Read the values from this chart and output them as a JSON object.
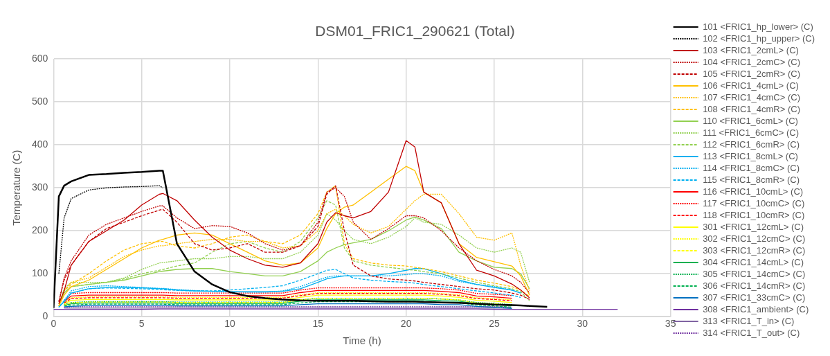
{
  "chart_data": {
    "type": "line",
    "title": "DSM01_FRIC1_290621 (Total)",
    "xlabel": "Time (h)",
    "ylabel": "Temperature (C)",
    "x": [
      0,
      0.3,
      0.6,
      1,
      2,
      3,
      4,
      5,
      6,
      6.2,
      7,
      8,
      9,
      10,
      11,
      12,
      13,
      14,
      15,
      15.5,
      16,
      16.5,
      17,
      18,
      19,
      20,
      20.5,
      21,
      22,
      23,
      24,
      25,
      26,
      26.5,
      27,
      28,
      29,
      30,
      31,
      32
    ],
    "xlim": [
      0,
      35
    ],
    "xticks": [
      0,
      5,
      10,
      15,
      20,
      25,
      30,
      35
    ],
    "ylim": [
      0,
      600
    ],
    "yticks": [
      0,
      100,
      200,
      300,
      400,
      500,
      600
    ],
    "grid": true,
    "legend": "right",
    "marker": "none",
    "series": [
      {
        "name": "101 <FRIC1_hp_lower> (C)",
        "color": "#000000",
        "line_style": "solid",
        "values": [
          20,
          280,
          305,
          315,
          330,
          332,
          335,
          337,
          340,
          340,
          170,
          105,
          75,
          57,
          48,
          43,
          40,
          38,
          37,
          37,
          37,
          37,
          37,
          36,
          35,
          35,
          35,
          34,
          33,
          32,
          30,
          28,
          27,
          26,
          25,
          23,
          null,
          null,
          null,
          null
        ]
      },
      {
        "name": "102 <FRIC1_hp_upper> (C)",
        "color": "#000000",
        "line_style": "dotted",
        "values": [
          null,
          100,
          230,
          275,
          295,
          300,
          302,
          303,
          305,
          300,
          null,
          null,
          null,
          null,
          null,
          null,
          null,
          null,
          null,
          null,
          null,
          null,
          null,
          null,
          null,
          null,
          null,
          null,
          null,
          null,
          null,
          null,
          null,
          null,
          null,
          null,
          null,
          null,
          null,
          null
        ]
      },
      {
        "name": "103 <FRIC1_2cmL> (C)",
        "color": "#c00000",
        "line_style": "solid",
        "values": [
          null,
          30,
          60,
          120,
          175,
          200,
          225,
          260,
          285,
          287,
          270,
          225,
          185,
          155,
          135,
          120,
          115,
          125,
          170,
          220,
          242,
          235,
          230,
          245,
          290,
          410,
          395,
          290,
          265,
          170,
          108,
          95,
          76,
          62,
          44,
          null,
          null,
          null,
          null,
          null
        ]
      },
      {
        "name": "104 <FRIC1_2cmC> (C)",
        "color": "#c00000",
        "line_style": "dotted",
        "values": [
          null,
          35,
          90,
          130,
          190,
          215,
          230,
          245,
          258,
          258,
          230,
          205,
          212,
          210,
          195,
          170,
          155,
          165,
          220,
          290,
          300,
          280,
          220,
          180,
          205,
          235,
          235,
          230,
          200,
          160,
          130,
          110,
          95,
          80,
          55,
          null,
          null,
          null,
          null,
          null
        ]
      },
      {
        "name": "105 <FRIC1_2cmR> (C)",
        "color": "#c00000",
        "line_style": "dashed",
        "values": [
          null,
          35,
          85,
          120,
          175,
          205,
          220,
          235,
          248,
          250,
          220,
          170,
          155,
          160,
          170,
          150,
          150,
          165,
          210,
          285,
          305,
          200,
          120,
          95,
          88,
          85,
          83,
          80,
          75,
          70,
          65,
          62,
          55,
          50,
          40,
          null,
          null,
          null,
          null,
          null
        ]
      },
      {
        "name": "106 <FRIC1_4cmL> (C)",
        "color": "#ffc000",
        "line_style": "solid",
        "values": [
          null,
          25,
          50,
          70,
          85,
          110,
          135,
          160,
          178,
          180,
          190,
          195,
          190,
          170,
          150,
          130,
          120,
          125,
          160,
          205,
          240,
          255,
          260,
          290,
          320,
          350,
          340,
          290,
          265,
          170,
          138,
          128,
          118,
          95,
          50,
          null,
          null,
          null,
          null,
          null
        ]
      },
      {
        "name": "107 <FRIC1_4cmC> (C)",
        "color": "#ffc000",
        "line_style": "dotted",
        "values": [
          null,
          25,
          60,
          80,
          90,
          115,
          140,
          155,
          165,
          165,
          170,
          175,
          180,
          180,
          175,
          175,
          160,
          165,
          200,
          240,
          250,
          235,
          215,
          195,
          210,
          250,
          270,
          285,
          285,
          240,
          185,
          178,
          195,
          120,
          60,
          null,
          null,
          null,
          null,
          null
        ]
      },
      {
        "name": "108 <FRIC1_4cmR> (C)",
        "color": "#ffc000",
        "line_style": "dashed",
        "values": [
          null,
          30,
          60,
          75,
          100,
          130,
          155,
          170,
          175,
          175,
          165,
          160,
          170,
          185,
          190,
          175,
          170,
          190,
          240,
          290,
          305,
          170,
          135,
          125,
          120,
          118,
          115,
          112,
          105,
          95,
          85,
          78,
          70,
          62,
          47,
          null,
          null,
          null,
          null,
          null
        ]
      },
      {
        "name": "110 <FRIC1_6cmL> (C)",
        "color": "#92d050",
        "line_style": "solid",
        "values": [
          null,
          25,
          55,
          70,
          75,
          80,
          85,
          95,
          105,
          106,
          110,
          112,
          112,
          105,
          100,
          95,
          95,
          105,
          130,
          150,
          160,
          168,
          172,
          180,
          200,
          225,
          232,
          225,
          205,
          150,
          130,
          115,
          112,
          100,
          65,
          null,
          null,
          null,
          null,
          null
        ]
      },
      {
        "name": "111 <FRIC1_6cmC> (C)",
        "color": "#92d050",
        "line_style": "dotted",
        "values": [
          null,
          30,
          65,
          80,
          80,
          80,
          90,
          110,
          125,
          126,
          130,
          135,
          135,
          140,
          140,
          135,
          135,
          150,
          190,
          240,
          225,
          200,
          180,
          170,
          185,
          210,
          230,
          220,
          215,
          190,
          160,
          150,
          160,
          150,
          80,
          null,
          null,
          null,
          null,
          null
        ]
      },
      {
        "name": "112 <FRIC1_6cmR> (C)",
        "color": "#92d050",
        "line_style": "dashed",
        "values": [
          null,
          25,
          55,
          70,
          75,
          80,
          88,
          100,
          108,
          110,
          118,
          125,
          150,
          170,
          175,
          160,
          150,
          175,
          230,
          270,
          260,
          160,
          130,
          120,
          115,
          110,
          108,
          105,
          100,
          90,
          80,
          72,
          65,
          58,
          37,
          null,
          null,
          null,
          null,
          null
        ]
      },
      {
        "name": "113 <FRIC1_8cmL> (C)",
        "color": "#00b0f0",
        "line_style": "solid",
        "values": [
          null,
          22,
          35,
          55,
          65,
          68,
          68,
          67,
          65,
          65,
          62,
          60,
          59,
          58,
          58,
          58,
          59,
          65,
          80,
          88,
          92,
          95,
          95,
          95,
          100,
          108,
          112,
          112,
          100,
          85,
          75,
          68,
          62,
          55,
          null,
          null,
          null,
          null,
          null,
          null
        ]
      },
      {
        "name": "114 <FRIC1_8cmC> (C)",
        "color": "#00b0f0",
        "line_style": "dotted",
        "values": [
          null,
          22,
          38,
          60,
          70,
          72,
          70,
          68,
          66,
          66,
          63,
          61,
          59,
          58,
          57,
          57,
          60,
          70,
          85,
          92,
          95,
          95,
          95,
          95,
          95,
          98,
          100,
          100,
          95,
          82,
          75,
          70,
          62,
          55,
          null,
          null,
          null,
          null,
          null,
          null
        ]
      },
      {
        "name": "115 <FRIC1_8cmR> (C)",
        "color": "#00b0f0",
        "line_style": "dashed",
        "values": [
          null,
          22,
          35,
          55,
          65,
          67,
          66,
          65,
          63,
          63,
          61,
          60,
          60,
          62,
          65,
          68,
          72,
          85,
          100,
          108,
          110,
          100,
          90,
          85,
          82,
          80,
          78,
          75,
          70,
          65,
          60,
          55,
          50,
          45,
          null,
          null,
          null,
          null,
          null,
          null
        ]
      },
      {
        "name": "116 <FRIC1_10cmL> (C)",
        "color": "#ff0000",
        "line_style": "solid",
        "values": [
          null,
          null,
          35,
          48,
          50,
          50,
          50,
          50,
          50,
          50,
          49,
          49,
          49,
          49,
          49,
          49,
          49,
          56,
          61,
          61,
          61,
          61,
          61,
          61,
          61,
          61,
          61,
          61,
          59,
          56,
          48,
          46,
          43,
          null,
          null,
          null,
          null,
          null,
          null,
          null
        ]
      },
      {
        "name": "117 <FRIC1_10cmC> (C)",
        "color": "#ff0000",
        "line_style": "dotted",
        "values": [
          null,
          null,
          38,
          54,
          56,
          56,
          56,
          56,
          56,
          56,
          55,
          55,
          55,
          55,
          55,
          55,
          55,
          62,
          67,
          67,
          67,
          67,
          67,
          67,
          67,
          67,
          67,
          67,
          65,
          62,
          54,
          52,
          49,
          null,
          null,
          null,
          null,
          null,
          null,
          null
        ]
      },
      {
        "name": "118 <FRIC1_10cmR> (C)",
        "color": "#ff0000",
        "line_style": "dashed",
        "values": [
          null,
          null,
          32,
          42,
          44,
          44,
          44,
          44,
          44,
          44,
          43,
          43,
          43,
          43,
          43,
          43,
          43,
          49,
          54,
          54,
          54,
          54,
          54,
          54,
          54,
          54,
          54,
          54,
          52,
          49,
          42,
          40,
          37,
          null,
          null,
          null,
          null,
          null,
          null,
          null
        ]
      },
      {
        "name": "301 <FRIC1_12cmL> (C)",
        "color": "#ffff00",
        "line_style": "solid",
        "values": [
          null,
          null,
          30,
          38,
          40,
          40,
          40,
          40,
          40,
          40,
          39,
          39,
          39,
          39,
          39,
          39,
          39,
          45,
          50,
          50,
          50,
          50,
          50,
          50,
          50,
          50,
          50,
          50,
          48,
          45,
          38,
          36,
          33,
          null,
          null,
          null,
          null,
          null,
          null,
          null
        ]
      },
      {
        "name": "302 <FRIC1_12cmC> (C)",
        "color": "#ffff00",
        "line_style": "dotted",
        "values": [
          null,
          null,
          33,
          44,
          46,
          46,
          46,
          46,
          46,
          46,
          45,
          45,
          45,
          45,
          45,
          45,
          45,
          51,
          56,
          56,
          56,
          56,
          56,
          56,
          56,
          56,
          56,
          56,
          54,
          51,
          44,
          42,
          39,
          null,
          null,
          null,
          null,
          null,
          null,
          null
        ]
      },
      {
        "name": "303 <FRIC1_12cmR> (C)",
        "color": "#ffff00",
        "line_style": "dashed",
        "values": [
          null,
          null,
          27,
          32,
          34,
          34,
          34,
          34,
          34,
          34,
          33,
          33,
          33,
          33,
          33,
          33,
          33,
          39,
          43,
          43,
          43,
          43,
          43,
          43,
          43,
          43,
          43,
          43,
          41,
          39,
          32,
          30,
          27,
          null,
          null,
          null,
          null,
          null,
          null,
          null
        ]
      },
      {
        "name": "304 <FRIC1_14cmL> (C)",
        "color": "#00b050",
        "line_style": "solid",
        "values": [
          null,
          null,
          26,
          30,
          32,
          32,
          32,
          32,
          32,
          32,
          31,
          31,
          31,
          31,
          31,
          31,
          31,
          36,
          39,
          39,
          39,
          39,
          39,
          39,
          39,
          39,
          39,
          39,
          37,
          36,
          30,
          28,
          25,
          null,
          null,
          null,
          null,
          null,
          null,
          null
        ]
      },
      {
        "name": "305 <FRIC1_14cmC> (C)",
        "color": "#00b050",
        "line_style": "dotted",
        "values": [
          null,
          null,
          28,
          33,
          35,
          35,
          35,
          35,
          35,
          35,
          34,
          34,
          34,
          34,
          34,
          34,
          34,
          39,
          43,
          43,
          43,
          43,
          43,
          43,
          43,
          43,
          43,
          43,
          41,
          39,
          33,
          31,
          28,
          null,
          null,
          null,
          null,
          null,
          null,
          null
        ]
      },
      {
        "name": "306 <FRIC1_14cmR> (C)",
        "color": "#00b050",
        "line_style": "dashed",
        "values": [
          null,
          null,
          25,
          27,
          29,
          29,
          29,
          29,
          29,
          29,
          28,
          28,
          28,
          28,
          28,
          28,
          28,
          32,
          35,
          35,
          35,
          35,
          35,
          35,
          35,
          35,
          35,
          35,
          33,
          32,
          27,
          25,
          22,
          null,
          null,
          null,
          null,
          null,
          null,
          null
        ]
      },
      {
        "name": "307 <FRIC1_33cmC> (C)",
        "color": "#0070c0",
        "line_style": "solid",
        "values": [
          null,
          null,
          23,
          24,
          26,
          26,
          26,
          26,
          26,
          26,
          25,
          25,
          25,
          25,
          25,
          25,
          25,
          28,
          30,
          30,
          30,
          30,
          30,
          30,
          30,
          30,
          30,
          30,
          28,
          28,
          24,
          22,
          19,
          null,
          null,
          null,
          null,
          null,
          null,
          null
        ]
      },
      {
        "name": "308 <FRIC1_ambient> (C)",
        "color": "#7030a0",
        "line_style": "solid",
        "values": [
          17,
          17,
          17,
          17,
          17,
          17,
          17,
          17,
          18,
          18,
          18,
          18,
          18,
          18,
          18,
          18,
          18,
          18,
          18,
          18,
          18,
          18,
          18,
          18,
          18,
          18,
          18,
          18,
          18,
          18,
          18,
          17,
          17,
          17,
          17,
          17,
          17,
          17,
          17,
          17
        ]
      },
      {
        "name": "313 <FRIC1_T_in> (C)",
        "color": "#8064a2",
        "line_style": "solid",
        "values": [
          null,
          null,
          20,
          20,
          20,
          20,
          20,
          20,
          20,
          20,
          20,
          20,
          20,
          20,
          20,
          20,
          20,
          20,
          20,
          20,
          20,
          20,
          20,
          20,
          20,
          20,
          20,
          20,
          20,
          20,
          20,
          20,
          20,
          null,
          null,
          null,
          null,
          null,
          null,
          null
        ]
      },
      {
        "name": "314 <FRIC1_T_out> (C)",
        "color": "#7030a0",
        "line_style": "dotted",
        "values": [
          null,
          null,
          22,
          23,
          23,
          23,
          23,
          23,
          23,
          23,
          23,
          23,
          23,
          23,
          23,
          23,
          23,
          23,
          23,
          23,
          23,
          23,
          23,
          23,
          23,
          23,
          23,
          23,
          23,
          23,
          23,
          23,
          22,
          null,
          null,
          null,
          null,
          null,
          null,
          null
        ]
      }
    ]
  }
}
